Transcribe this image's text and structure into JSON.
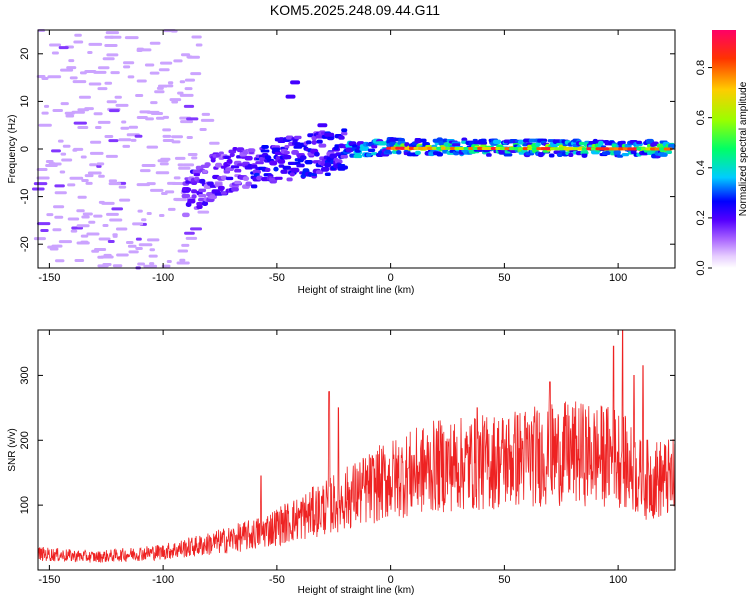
{
  "title": "KOM5.2025.248.09.44.G11",
  "chart_data": [
    {
      "type": "heatmap",
      "name": "spectrogram",
      "xlabel": "Height of straight line (km)",
      "ylabel": "Frequency (Hz)",
      "xlim": [
        -155,
        125
      ],
      "ylim": [
        -25,
        25
      ],
      "x_ticks": [
        -150,
        -100,
        -50,
        0,
        50,
        100
      ],
      "x_tick_labels": [
        "-150",
        "-100",
        "-50",
        "0",
        "50",
        "100"
      ],
      "y_ticks": [
        -20,
        -10,
        0,
        10,
        20
      ],
      "y_tick_labels": [
        "-20",
        "-10",
        "0",
        "10",
        "20"
      ],
      "colorbar": {
        "label": "Normalized spectral amplitude",
        "range": [
          0,
          0.95
        ],
        "ticks": [
          0.0,
          0.2,
          0.4,
          0.6,
          0.8
        ],
        "tick_labels": [
          "0.0",
          "0.2",
          "0.4",
          "0.6",
          "0.8"
        ],
        "colors": [
          "#ffffff",
          "#cc99ff",
          "#6600ff",
          "#0000ff",
          "#00ccff",
          "#00ff66",
          "#ccff00",
          "#ffcc00",
          "#ff0000",
          "#ff0066"
        ]
      },
      "features": [
        {
          "type": "noise_field",
          "x_range": [
            -155,
            -85
          ],
          "y_range": [
            -25,
            25
          ],
          "amplitude": 0.05
        },
        {
          "type": "ridge",
          "points": [
            [
              -85,
              -8
            ],
            [
              -75,
              -5
            ],
            [
              -60,
              -3.5
            ],
            [
              -45,
              -2
            ],
            [
              -30,
              -1
            ],
            [
              -15,
              0
            ],
            [
              0,
              0.5
            ],
            [
              125,
              0
            ]
          ],
          "amplitude": 0.6
        }
      ]
    },
    {
      "type": "line",
      "name": "snr",
      "xlabel": "Height of straight line (km)",
      "ylabel": "SNR (v/v)",
      "xlim": [
        -155,
        125
      ],
      "ylim": [
        0,
        370
      ],
      "x_ticks": [
        -150,
        -100,
        -50,
        0,
        50,
        100
      ],
      "x_tick_labels": [
        "-150",
        "-100",
        "-50",
        "0",
        "50",
        "100"
      ],
      "y_ticks": [
        100,
        200,
        300
      ],
      "y_tick_labels": [
        "100",
        "200",
        "300"
      ],
      "color": "#ee2222",
      "envelope": [
        {
          "x": -155,
          "y": 25
        },
        {
          "x": -130,
          "y": 20
        },
        {
          "x": -100,
          "y": 28
        },
        {
          "x": -80,
          "y": 40
        },
        {
          "x": -60,
          "y": 55
        },
        {
          "x": -40,
          "y": 80
        },
        {
          "x": -20,
          "y": 110
        },
        {
          "x": 0,
          "y": 140
        },
        {
          "x": 20,
          "y": 160
        },
        {
          "x": 40,
          "y": 165
        },
        {
          "x": 60,
          "y": 175
        },
        {
          "x": 80,
          "y": 180
        },
        {
          "x": 100,
          "y": 175
        },
        {
          "x": 110,
          "y": 140
        },
        {
          "x": 125,
          "y": 140
        }
      ],
      "peaks": [
        {
          "x": -57,
          "y": 145
        },
        {
          "x": -27,
          "y": 275
        },
        {
          "x": -23,
          "y": 250
        },
        {
          "x": 38,
          "y": 250
        },
        {
          "x": 70,
          "y": 290
        },
        {
          "x": 98,
          "y": 345
        },
        {
          "x": 102,
          "y": 370
        },
        {
          "x": 107,
          "y": 300
        },
        {
          "x": 111,
          "y": 315
        }
      ]
    }
  ]
}
